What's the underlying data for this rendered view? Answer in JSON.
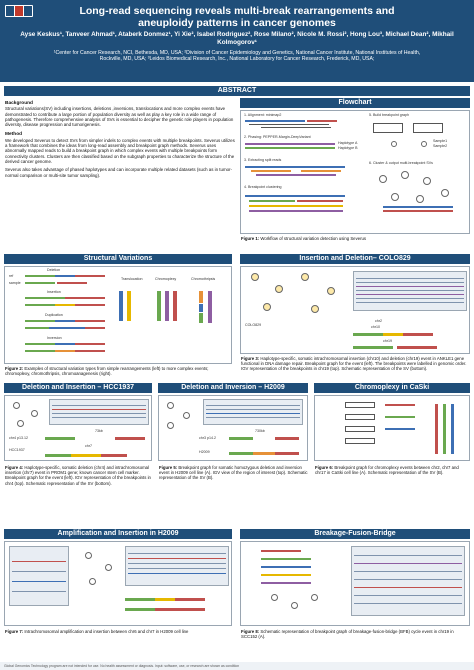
{
  "header": {
    "title_line1": "Long-read sequencing reveals multi-break rearrangements and",
    "title_line2": "aneuploidy patterns in cancer genomes",
    "authors": "Ayse Keskus¹, Tanveer Ahmad¹, Ataberk Donmez¹, Yi Xie², Isabel Rodriguez², Rose Milano², Nicole M. Rossi², Hong Lou³, Michael Dean², Mikhail Kolmogorov¹",
    "affil_line1": "¹Center for Cancer Research, NCI, Bethesda, MD, USA; ²Division of Cancer Epidemiology and Genetics, National Cancer Institute, National Institutes of Health,",
    "affil_line2": "Rockville, MD, USA; ³Leidos Biomedical Research, Inc., National Laboratory for Cancer Research, Frederick, MD, USA;"
  },
  "sections": {
    "abstract": "ABSTRACT",
    "flowchart": "Flowchart",
    "structural_variations": "Structural Variations",
    "insertion_deletion": "Insertion and Deletion– COLO829",
    "deletion_insertion": "Deletion and Insertion – HCC1937",
    "deletion_inversion": "Deletion and Inversion – H2009",
    "chromoplexy": "Chromoplexy in CaSki",
    "amplification": "Amplification and Insertion in H2009",
    "bfb": "Breakage-Fusion-Bridge"
  },
  "abstract": {
    "background_head": "Background",
    "background": "Structural variations(SV) including insertions, deletions ,inversions, translocations and more complex events have demonstrated to contribute a large portion of population diversity as well as play a key role in a wide range of pathogenesis. Therefore comprehensive analysis of SVs is essential to decipher the genetic role players in population diversity, disease progression and tumorigenesis.",
    "method_head": "Method",
    "method": "We developed Severus to detect SVs from simpler indels to complex events with multiple breakpoints. Severus utilizes a framework that combines the ideas from long-read assembly and breakpoint graph methods. Severus uses abnormally mapped reads to build a breakpoint graph in which complex events with multiple breakpoints form connectivity clusters. Clusters are then classified based on the subgraph properties to characterize the structure of the derived cancer genome.",
    "method2": "Severus also takes advantage of phased haplotypes and can incorporate multiple related datasets (such as in tumor-normal comparison or multi-site tumor sampling)."
  },
  "flowchart": {
    "step1": "1. Alignment: minimap2",
    "step2": "2. Phasing: PEPPER-Margin-DeepVariant",
    "step3": "3. Extracting split reads",
    "step4": "4. Breakpoint clustering",
    "step5": "5. Build breakpoint graph",
    "step6": "6. Cluster & output multi-breakpoint SVs",
    "hap1": "Haplotype A",
    "hap2": "Haplotype B",
    "sample1": "Sample1",
    "sample2": "Sample2",
    "caption_head": "Figure 1:",
    "caption": "Workflow of structural variation detection using Severus"
  },
  "sv": {
    "deletion": "Deletion",
    "insertion": "Insertion",
    "duplication": "Duplication",
    "inversion": "Inversion",
    "translocation": "Translocation",
    "chromoplexy": "Chromoplexy",
    "chromothripsis": "Chromothripsis",
    "ref": "ref",
    "sample": "sample",
    "caption_head": "Figure 2:",
    "caption": "Examples of structural variation types from simple rearrangements (left) to more complex events; chromoplexy, chromothripsis, chromoanagenesis (right)."
  },
  "colo": {
    "colo_label": "COLO829",
    "chr2": "chr2",
    "chr10": "chr10",
    "chr19": "chr19",
    "caption_head": "Figure 3:",
    "caption": "Haplotype-specific, somatic intrachromosomal insertion (chr10) and deletion (chr19) event in ANKLE1 gene functional in DNA damage repair. Breakpoint graph for the event (left). The breakpoints were labelled in genomic order. IGV representation of the breakpoints in chr19 (top). Schematic representation of the SV (bottom)."
  },
  "hcc": {
    "size": "73kb",
    "chr4": "chr4 p13.12",
    "chr7": "chr7",
    "hcc_label": "HCC1937",
    "caption_head": "Figure 4:",
    "caption": "Haplotype-specific, somatic deletion (chr4) and intrachromosomal insertion (chr7) event in PROM1 gene; known cancer stem cell marker. Breakpoint graph for the event (left). IGV representation of the breakpoints in chr4 (top). Schematic representation of the SV (bottom)."
  },
  "h2009": {
    "size": "730kb",
    "chr3": "chr3 p14.2",
    "h2009_label": "H2009",
    "caption_head": "Figure 5:",
    "caption": "Breakpoint graph for somatic homozygous deletion and inversion event in H2009 cell line (A). IGV view of the region of interest (top). Schematic representation of the SV (B)."
  },
  "caski": {
    "caption_head": "Figure 6:",
    "caption": "Breakpoint graph for chromoplexy events between chr2, chr7 and chr17 in CaSki cell line (A). Schematic representation of the SV (B)."
  },
  "amp": {
    "caption_head": "Figure 7:",
    "caption": "Intrachromosomal amplification and insertion between chr6 and chr7 in H2009 cell line"
  },
  "bfb": {
    "caption_head": "Figure 8:",
    "caption": "Schematic representation of breakpoint graph of breakage-fusion-bridge (BFB) cycle event in chr19 in SCC152 (A)."
  },
  "footer": "Global Genomics Technology program are not intended for use. No health assessment or diagnosis. Input: software, use, or research are shown as condition"
}
